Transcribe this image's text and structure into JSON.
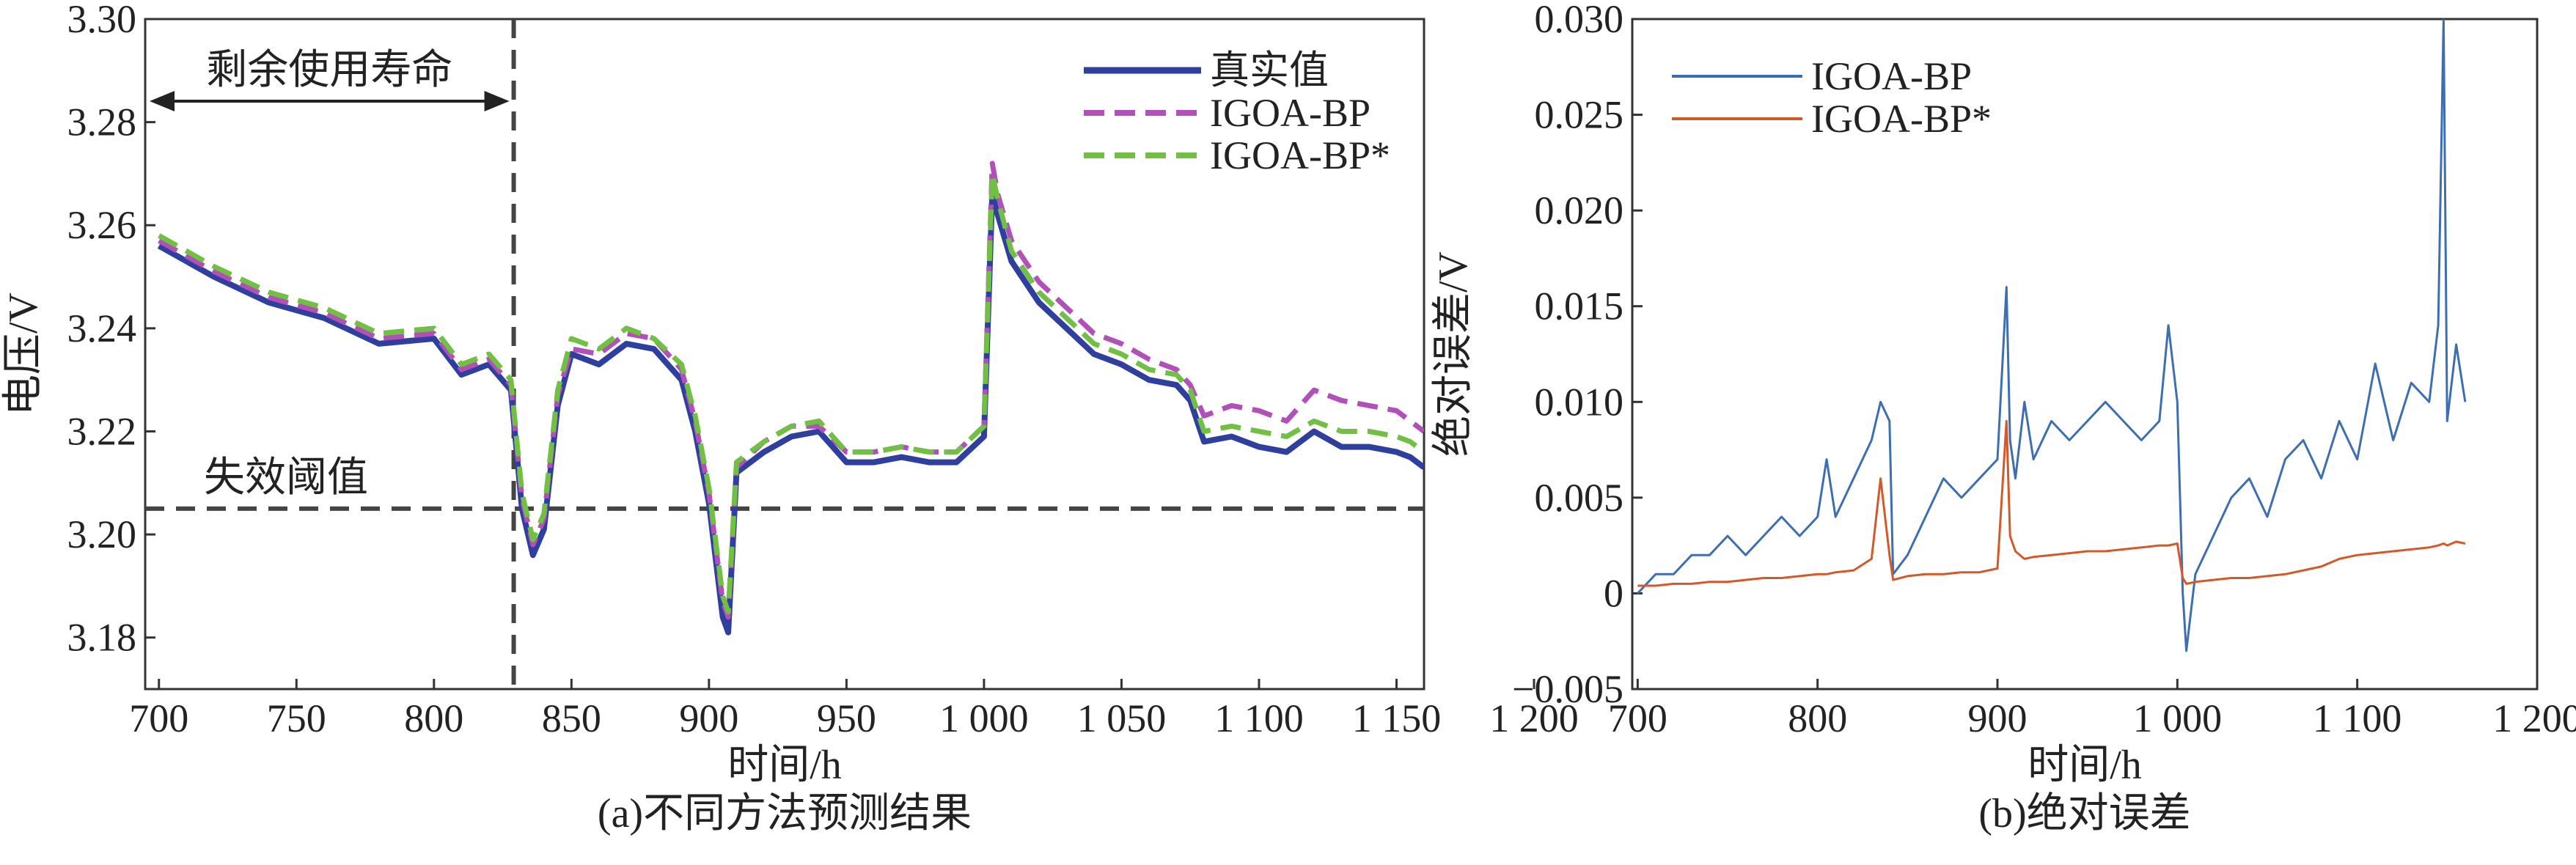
{
  "chart_data": [
    {
      "type": "line",
      "caption": "(a)不同方法预测结果",
      "xlabel": "时间/h",
      "ylabel": "电压/V",
      "xlim": [
        695,
        1160
      ],
      "ylim": [
        3.17,
        3.3
      ],
      "xticks": [
        700,
        750,
        800,
        850,
        900,
        950,
        1000,
        1050,
        1100,
        1150,
        1200
      ],
      "xtick_labels": [
        "700",
        "750",
        "800",
        "850",
        "900",
        "950",
        "1 000",
        "1 050",
        "1 100",
        "1 150",
        "1 200"
      ],
      "yticks": [
        3.18,
        3.2,
        3.22,
        3.24,
        3.26,
        3.28,
        3.3
      ],
      "ytick_labels": [
        "3.18",
        "3.20",
        "3.22",
        "3.24",
        "3.26",
        "3.28",
        "3.30"
      ],
      "x": [
        700,
        720,
        740,
        760,
        780,
        800,
        810,
        820,
        828,
        832,
        836,
        840,
        845,
        850,
        860,
        870,
        880,
        890,
        895,
        900,
        905,
        907,
        910,
        920,
        930,
        940,
        950,
        960,
        970,
        980,
        990,
        1000,
        1003,
        1005,
        1010,
        1020,
        1030,
        1040,
        1050,
        1060,
        1070,
        1075,
        1080,
        1090,
        1100,
        1110,
        1120,
        1130,
        1140,
        1150,
        1155,
        1160
      ],
      "series": [
        {
          "name": "真实值",
          "color": "#2e3f9e",
          "dash": "solid",
          "values": [
            3.256,
            3.25,
            3.245,
            3.242,
            3.237,
            3.238,
            3.231,
            3.233,
            3.228,
            3.205,
            3.196,
            3.201,
            3.225,
            3.235,
            3.233,
            3.237,
            3.236,
            3.23,
            3.22,
            3.206,
            3.184,
            3.181,
            3.212,
            3.216,
            3.219,
            3.22,
            3.214,
            3.214,
            3.215,
            3.214,
            3.214,
            3.219,
            3.266,
            3.262,
            3.253,
            3.245,
            3.24,
            3.235,
            3.233,
            3.23,
            3.229,
            3.226,
            3.218,
            3.219,
            3.217,
            3.216,
            3.22,
            3.217,
            3.217,
            3.216,
            3.215,
            3.213
          ]
        },
        {
          "name": "IGOA-BP",
          "color": "#b150b8",
          "dash": "dashed",
          "values": [
            3.257,
            3.251,
            3.246,
            3.243,
            3.238,
            3.239,
            3.232,
            3.234,
            3.229,
            3.207,
            3.198,
            3.203,
            3.227,
            3.236,
            3.235,
            3.239,
            3.238,
            3.232,
            3.222,
            3.208,
            3.187,
            3.184,
            3.213,
            3.218,
            3.221,
            3.221,
            3.216,
            3.216,
            3.217,
            3.216,
            3.216,
            3.221,
            3.272,
            3.266,
            3.257,
            3.249,
            3.244,
            3.239,
            3.237,
            3.234,
            3.232,
            3.229,
            3.223,
            3.225,
            3.224,
            3.222,
            3.228,
            3.226,
            3.225,
            3.224,
            3.222,
            3.22
          ]
        },
        {
          "name": "IGOA-BP*",
          "color": "#72c043",
          "dash": "dashed",
          "values": [
            3.258,
            3.252,
            3.247,
            3.244,
            3.239,
            3.24,
            3.233,
            3.235,
            3.23,
            3.208,
            3.199,
            3.204,
            3.228,
            3.238,
            3.236,
            3.24,
            3.238,
            3.233,
            3.223,
            3.209,
            3.188,
            3.185,
            3.214,
            3.218,
            3.221,
            3.222,
            3.216,
            3.216,
            3.217,
            3.216,
            3.216,
            3.221,
            3.27,
            3.265,
            3.255,
            3.247,
            3.242,
            3.237,
            3.235,
            3.232,
            3.231,
            3.228,
            3.22,
            3.221,
            3.22,
            3.219,
            3.222,
            3.22,
            3.22,
            3.219,
            3.218,
            3.216
          ]
        }
      ],
      "threshold": {
        "value": 3.205,
        "label": "失效阈值"
      },
      "rul_marker": {
        "x": 829,
        "label": "剩余使用寿命"
      },
      "legend_position": "top-right"
    },
    {
      "type": "line",
      "caption": "(b)绝对误差",
      "xlabel": "时间/h",
      "ylabel": "绝对误差/V",
      "xlim": [
        697,
        1200
      ],
      "ylim": [
        -0.005,
        0.03
      ],
      "xticks": [
        700,
        800,
        900,
        1000,
        1100,
        1200
      ],
      "xtick_labels": [
        "700",
        "800",
        "900",
        "1 000",
        "1 100",
        "1 200"
      ],
      "yticks": [
        -0.005,
        0,
        0.005,
        0.01,
        0.015,
        0.02,
        0.025,
        0.03
      ],
      "ytick_labels": [
        "−0.005",
        "0",
        "0.005",
        "0.010",
        "0.015",
        "0.020",
        "0.025",
        "0.030"
      ],
      "x": [
        700,
        710,
        720,
        730,
        740,
        750,
        760,
        770,
        780,
        790,
        800,
        805,
        810,
        820,
        830,
        835,
        840,
        842,
        850,
        860,
        870,
        880,
        890,
        900,
        905,
        907,
        910,
        915,
        920,
        930,
        940,
        950,
        960,
        970,
        980,
        990,
        995,
        1000,
        1003,
        1005,
        1010,
        1020,
        1030,
        1040,
        1050,
        1060,
        1070,
        1080,
        1090,
        1100,
        1110,
        1120,
        1130,
        1140,
        1145,
        1148,
        1150,
        1155,
        1160
      ],
      "series": [
        {
          "name": "IGOA-BP",
          "color": "#3d6eb0",
          "dash": "solid",
          "values": [
            0.0,
            0.001,
            0.001,
            0.002,
            0.002,
            0.003,
            0.002,
            0.003,
            0.004,
            0.003,
            0.004,
            0.007,
            0.004,
            0.006,
            0.008,
            0.01,
            0.009,
            0.001,
            0.002,
            0.004,
            0.006,
            0.005,
            0.006,
            0.007,
            0.016,
            0.008,
            0.006,
            0.01,
            0.007,
            0.009,
            0.008,
            0.009,
            0.01,
            0.009,
            0.008,
            0.009,
            0.014,
            0.01,
            0.0,
            -0.003,
            0.001,
            0.003,
            0.005,
            0.006,
            0.004,
            0.007,
            0.008,
            0.006,
            0.009,
            0.007,
            0.012,
            0.008,
            0.011,
            0.01,
            0.014,
            0.03,
            0.009,
            0.013,
            0.01
          ]
        },
        {
          "name": "IGOA-BP*",
          "color": "#d2592a",
          "dash": "solid",
          "values": [
            0.0004,
            0.0004,
            0.0005,
            0.0005,
            0.0006,
            0.0006,
            0.0007,
            0.0008,
            0.0008,
            0.0009,
            0.001,
            0.001,
            0.0011,
            0.0012,
            0.0018,
            0.006,
            0.002,
            0.0007,
            0.0009,
            0.001,
            0.001,
            0.0011,
            0.0011,
            0.0013,
            0.009,
            0.003,
            0.0022,
            0.0018,
            0.0019,
            0.002,
            0.0021,
            0.0022,
            0.0022,
            0.0023,
            0.0024,
            0.0025,
            0.0025,
            0.0026,
            0.0008,
            0.0005,
            0.0006,
            0.0007,
            0.0008,
            0.0008,
            0.0009,
            0.001,
            0.0012,
            0.0014,
            0.0018,
            0.002,
            0.0021,
            0.0022,
            0.0023,
            0.0024,
            0.0025,
            0.0026,
            0.0025,
            0.0027,
            0.0026
          ]
        }
      ],
      "legend_position": "top-left"
    }
  ]
}
